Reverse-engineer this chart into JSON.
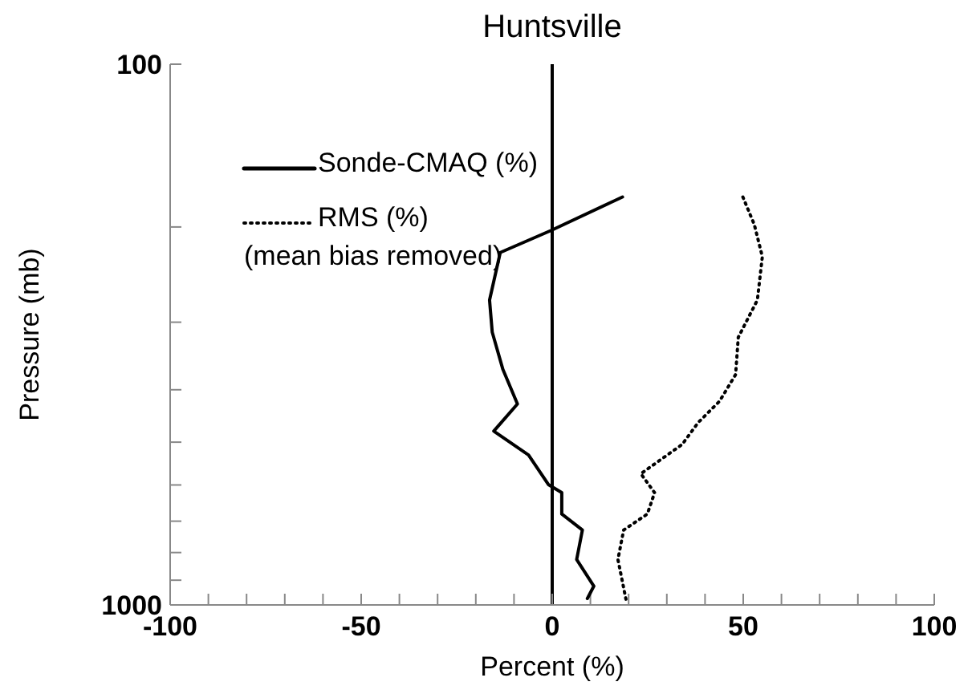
{
  "chart_data": {
    "type": "line",
    "title": "Huntsville",
    "xlabel": "Percent (%)",
    "ylabel": "Pressure (mb)",
    "xlim": [
      -100,
      100
    ],
    "ylim": [
      1000,
      100
    ],
    "log": "y",
    "xticks": [
      -100,
      {
        "value": -90,
        "label": null
      },
      {
        "value": -80,
        "label": null
      },
      {
        "value": -70,
        "label": null
      },
      {
        "value": -60,
        "label": null
      },
      -50,
      {
        "value": -40,
        "label": null
      },
      {
        "value": -30,
        "label": null
      },
      {
        "value": -20,
        "label": null
      },
      {
        "value": -10,
        "label": null
      },
      0,
      {
        "value": 10,
        "label": null
      },
      {
        "value": 20,
        "label": null
      },
      {
        "value": 30,
        "label": null
      },
      {
        "value": 40,
        "label": null
      },
      50,
      {
        "value": 60,
        "label": null
      },
      {
        "value": 70,
        "label": null
      },
      {
        "value": 80,
        "label": null
      },
      {
        "value": 90,
        "label": null
      },
      100
    ],
    "yticks": [
      100,
      {
        "value": 200,
        "label": null
      },
      {
        "value": 300,
        "label": null
      },
      {
        "value": 400,
        "label": null
      },
      {
        "value": 500,
        "label": null
      },
      {
        "value": 600,
        "label": null
      },
      {
        "value": 700,
        "label": null
      },
      {
        "value": 800,
        "label": null
      },
      {
        "value": 900,
        "label": null
      },
      1000
    ],
    "series": [
      {
        "name": "Sonde-CMAQ (%)",
        "color": "#000000",
        "line_style": "solid",
        "x": [
          18.4,
          -0.3,
          -13.6,
          -16.4,
          -15.7,
          -12.9,
          -9.1,
          -15.3,
          -6.2,
          -1.0,
          2.5,
          2.5,
          7.9,
          6.4,
          10.9,
          9.2
        ],
        "values": [
          176,
          203,
          223,
          273,
          313,
          367,
          425,
          477,
          528,
          599,
          620,
          679,
          727,
          824,
          923,
          973
        ]
      },
      {
        "name": "RMS (%)",
        "color": "#000000",
        "line_style": "dotted",
        "x": [
          49.9,
          52.9,
          55.0,
          53.7,
          48.7,
          48.0,
          43.8,
          38.2,
          34.0,
          23.2,
          26.8,
          24.9,
          18.7,
          17.2,
          19.3
        ],
        "values": [
          176,
          198,
          227,
          273,
          320,
          375,
          420,
          460,
          505,
          572,
          620,
          679,
          727,
          824,
          976
        ]
      }
    ],
    "ref_lines": [
      {
        "axis": "x",
        "value": 0,
        "color": "#000000"
      }
    ],
    "annotations": [
      "(mean bias removed)"
    ],
    "legend": "top left",
    "marker": "none"
  }
}
